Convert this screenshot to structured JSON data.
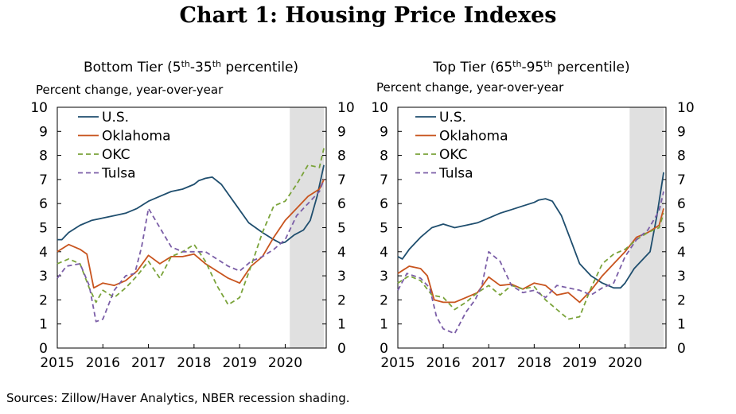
{
  "title": "Chart 1: Housing Price Indexes",
  "source": "Sources: Zillow/Haver Analytics, NBER recession shading.",
  "colors": {
    "US": "#1f4e6e",
    "Oklahoma": "#c8541e",
    "OKC": "#7aa33a",
    "Tulsa": "#7b5ea7",
    "recession": "#e0e0e0"
  },
  "chart_data": [
    {
      "type": "line",
      "title_parts": [
        "Bottom Tier (5",
        "th",
        "-35",
        "th",
        " percentile)"
      ],
      "ylabel": "Percent change, year-over-year",
      "ylim": [
        0,
        10
      ],
      "yticks": [
        0,
        1,
        2,
        3,
        4,
        5,
        6,
        7,
        8,
        9,
        10
      ],
      "xlim": [
        2015,
        2020.9
      ],
      "xticks": [
        "2015",
        "2016",
        "2017",
        "2018",
        "2019",
        "2020"
      ],
      "recession": [
        2020.1,
        2020.85
      ],
      "legend": "top-left",
      "series": [
        {
          "name": "U.S.",
          "key": "US",
          "dash": false,
          "x": [
            2015,
            2015.1,
            2015.25,
            2015.5,
            2015.75,
            2016,
            2016.25,
            2016.5,
            2016.75,
            2017,
            2017.25,
            2017.5,
            2017.75,
            2018,
            2018.1,
            2018.25,
            2018.4,
            2018.6,
            2018.9,
            2019.2,
            2019.5,
            2019.75,
            2019.9,
            2020.0,
            2020.2,
            2020.4,
            2020.55,
            2020.7,
            2020.85
          ],
          "y": [
            4.5,
            4.5,
            4.8,
            5.1,
            5.3,
            5.4,
            5.5,
            5.6,
            5.8,
            6.1,
            6.3,
            6.5,
            6.6,
            6.8,
            6.95,
            7.05,
            7.1,
            6.8,
            6.0,
            5.2,
            4.8,
            4.5,
            4.35,
            4.4,
            4.7,
            4.9,
            5.3,
            6.3,
            7.6
          ]
        },
        {
          "name": "Oklahoma",
          "key": "Oklahoma",
          "dash": false,
          "x": [
            2015,
            2015.25,
            2015.5,
            2015.65,
            2015.8,
            2016,
            2016.25,
            2016.5,
            2016.75,
            2017,
            2017.25,
            2017.5,
            2017.75,
            2018,
            2018.25,
            2018.5,
            2018.75,
            2019,
            2019.25,
            2019.5,
            2019.75,
            2020,
            2020.25,
            2020.5,
            2020.75,
            2020.85
          ],
          "y": [
            4.0,
            4.3,
            4.1,
            3.9,
            2.5,
            2.7,
            2.6,
            2.8,
            3.2,
            3.85,
            3.5,
            3.8,
            3.8,
            3.9,
            3.5,
            3.2,
            2.9,
            2.7,
            3.4,
            3.8,
            4.6,
            5.3,
            5.8,
            6.3,
            6.6,
            7.0
          ]
        },
        {
          "name": "OKC",
          "key": "OKC",
          "dash": true,
          "x": [
            2015,
            2015.25,
            2015.5,
            2015.7,
            2015.85,
            2016,
            2016.25,
            2016.5,
            2016.75,
            2017,
            2017.25,
            2017.5,
            2017.75,
            2018,
            2018.25,
            2018.5,
            2018.75,
            2019,
            2019.25,
            2019.5,
            2019.75,
            2020,
            2020.25,
            2020.5,
            2020.75,
            2020.85
          ],
          "y": [
            3.5,
            3.7,
            3.5,
            2.5,
            1.9,
            2.4,
            2.1,
            2.5,
            3.0,
            3.6,
            2.9,
            3.8,
            4.0,
            4.3,
            3.6,
            2.6,
            1.8,
            2.1,
            3.4,
            4.8,
            5.9,
            6.1,
            6.8,
            7.6,
            7.5,
            8.3
          ]
        },
        {
          "name": "Tulsa",
          "key": "Tulsa",
          "dash": true,
          "x": [
            2015,
            2015.2,
            2015.5,
            2015.7,
            2015.85,
            2016,
            2016.25,
            2016.5,
            2016.7,
            2016.85,
            2017,
            2017.25,
            2017.5,
            2017.75,
            2018,
            2018.25,
            2018.5,
            2018.75,
            2019,
            2019.25,
            2019.5,
            2019.75,
            2020,
            2020.25,
            2020.5,
            2020.75,
            2020.85
          ],
          "y": [
            2.9,
            3.4,
            3.5,
            2.6,
            1.1,
            1.2,
            2.4,
            3.0,
            3.1,
            4.2,
            5.8,
            5.0,
            4.2,
            4.0,
            4.0,
            4.0,
            3.7,
            3.4,
            3.2,
            3.6,
            3.8,
            4.1,
            4.5,
            5.5,
            6.0,
            6.5,
            7.0
          ]
        }
      ]
    },
    {
      "type": "line",
      "title_parts": [
        "Top Tier (65",
        "th",
        "-95",
        "th",
        " percentile)"
      ],
      "ylabel": "Percent change, year-over-year",
      "ylim": [
        0,
        10
      ],
      "yticks": [
        0,
        1,
        2,
        3,
        4,
        5,
        6,
        7,
        8,
        9,
        10
      ],
      "xlim": [
        2015,
        2020.9
      ],
      "xticks": [
        "2015",
        "2016",
        "2017",
        "2018",
        "2019",
        "2020"
      ],
      "recession": [
        2020.1,
        2020.85
      ],
      "legend": "top-left",
      "series": [
        {
          "name": "U.S.",
          "key": "US",
          "dash": false,
          "x": [
            2015,
            2015.1,
            2015.25,
            2015.5,
            2015.75,
            2016,
            2016.25,
            2016.5,
            2016.75,
            2017,
            2017.25,
            2017.5,
            2017.75,
            2018,
            2018.1,
            2018.25,
            2018.4,
            2018.6,
            2018.8,
            2019,
            2019.25,
            2019.5,
            2019.75,
            2019.9,
            2020.0,
            2020.2,
            2020.4,
            2020.55,
            2020.7,
            2020.85
          ],
          "y": [
            3.8,
            3.7,
            4.1,
            4.6,
            5.0,
            5.15,
            5.0,
            5.1,
            5.2,
            5.4,
            5.6,
            5.75,
            5.9,
            6.05,
            6.15,
            6.2,
            6.1,
            5.5,
            4.5,
            3.5,
            3.0,
            2.7,
            2.5,
            2.5,
            2.7,
            3.3,
            3.7,
            4.0,
            5.5,
            7.3
          ]
        },
        {
          "name": "Oklahoma",
          "key": "Oklahoma",
          "dash": false,
          "x": [
            2015,
            2015.25,
            2015.5,
            2015.65,
            2015.8,
            2016,
            2016.25,
            2016.5,
            2016.75,
            2017,
            2017.25,
            2017.5,
            2017.75,
            2018,
            2018.25,
            2018.5,
            2018.75,
            2019,
            2019.25,
            2019.5,
            2019.75,
            2020,
            2020.25,
            2020.5,
            2020.75,
            2020.85
          ],
          "y": [
            3.1,
            3.4,
            3.3,
            3.0,
            2.0,
            1.9,
            1.9,
            2.1,
            2.3,
            2.95,
            2.6,
            2.65,
            2.45,
            2.7,
            2.6,
            2.2,
            2.3,
            1.9,
            2.4,
            3.0,
            3.5,
            4.0,
            4.6,
            4.8,
            5.1,
            5.8
          ]
        },
        {
          "name": "OKC",
          "key": "OKC",
          "dash": true,
          "x": [
            2015,
            2015.25,
            2015.5,
            2015.75,
            2016,
            2016.25,
            2016.5,
            2016.75,
            2017,
            2017.25,
            2017.5,
            2017.75,
            2018,
            2018.25,
            2018.5,
            2018.75,
            2019,
            2019.25,
            2019.5,
            2019.75,
            2020,
            2020.25,
            2020.5,
            2020.75,
            2020.85
          ],
          "y": [
            2.7,
            3.0,
            2.8,
            2.2,
            2.1,
            1.6,
            1.9,
            2.3,
            2.6,
            2.2,
            2.6,
            2.45,
            2.55,
            2.0,
            1.6,
            1.2,
            1.3,
            2.5,
            3.5,
            3.9,
            4.1,
            4.5,
            4.8,
            5.0,
            5.6
          ]
        },
        {
          "name": "Tulsa",
          "key": "Tulsa",
          "dash": true,
          "x": [
            2015,
            2015.2,
            2015.5,
            2015.7,
            2015.85,
            2016,
            2016.25,
            2016.5,
            2016.7,
            2016.85,
            2017,
            2017.25,
            2017.5,
            2017.75,
            2018,
            2018.25,
            2018.5,
            2018.75,
            2019,
            2019.25,
            2019.5,
            2019.75,
            2020,
            2020.25,
            2020.5,
            2020.75,
            2020.85
          ],
          "y": [
            2.4,
            3.1,
            2.9,
            2.5,
            1.3,
            0.8,
            0.6,
            1.5,
            2.0,
            2.6,
            4.0,
            3.6,
            2.6,
            2.3,
            2.4,
            2.1,
            2.6,
            2.5,
            2.4,
            2.2,
            2.5,
            2.7,
            3.8,
            4.5,
            4.9,
            5.7,
            6.5
          ]
        }
      ]
    }
  ]
}
